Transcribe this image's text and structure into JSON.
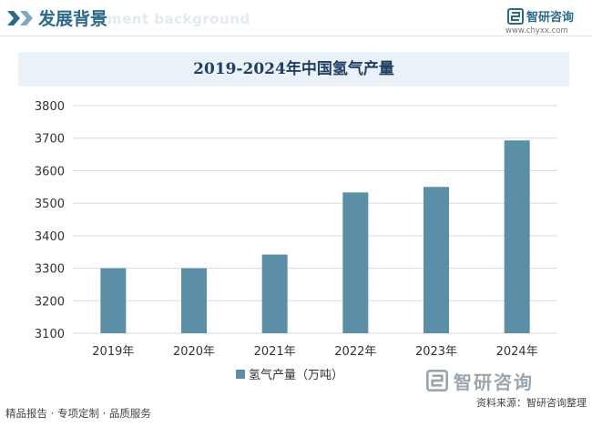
{
  "header": {
    "section_title": "发展背景",
    "section_bg_text": "ment background",
    "brand_name": "智研咨询",
    "brand_url": "www.chyxx.com"
  },
  "footer": {
    "left_text": "精品报告 · 专项定制 · 品质服务",
    "source_text": "资料来源：智研咨询整理",
    "watermark_brand": "智研咨询"
  },
  "colors": {
    "accent": "#2a6a8c",
    "bar": "#5b8fa8",
    "title_band": "#eaf2f7",
    "title_text": "#1f3f66"
  },
  "chart_data": {
    "type": "bar",
    "title": "2019-2024年中国氢气产量",
    "categories": [
      "2019年",
      "2020年",
      "2021年",
      "2022年",
      "2023年",
      "2024年"
    ],
    "series": [
      {
        "name": "氢气产量（万吨）",
        "values": [
          3300,
          3300,
          3342,
          3533,
          3550,
          3693
        ]
      }
    ],
    "ylim": [
      3100,
      3800
    ],
    "yticks": [
      3100,
      3200,
      3300,
      3400,
      3500,
      3600,
      3700,
      3800
    ],
    "grid": true,
    "legend_position": "bottom-center"
  }
}
